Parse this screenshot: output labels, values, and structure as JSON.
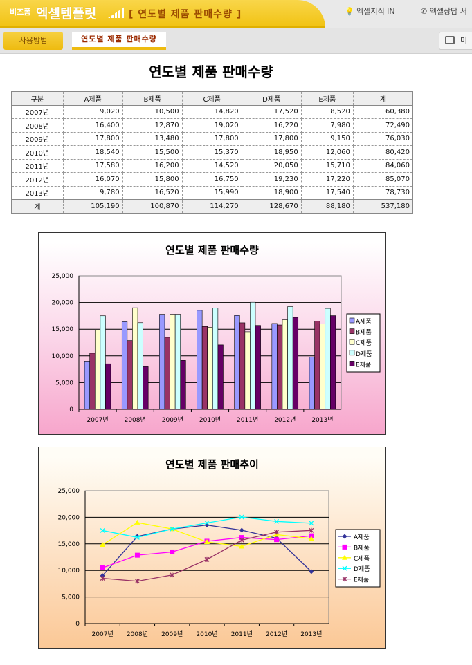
{
  "header": {
    "brand_small": "비즈폼",
    "brand": "엑셀템플릿",
    "title": "[ 연도별 제품 판매수량 ]",
    "tabs": [
      "엑셀지식 IN",
      "엑셀상담 서"
    ]
  },
  "subnav": {
    "usage": "사용방법",
    "current": "연도별 제품 판매수량",
    "right": "미"
  },
  "page_title": "연도별 제품 판매수량",
  "table": {
    "headers": [
      "구분",
      "A제품",
      "B제품",
      "C제품",
      "D제품",
      "E제품",
      "계"
    ],
    "rows": [
      [
        "2007년",
        "9,020",
        "10,500",
        "14,820",
        "17,520",
        "8,520",
        "60,380"
      ],
      [
        "2008년",
        "16,400",
        "12,870",
        "19,020",
        "16,220",
        "7,980",
        "72,490"
      ],
      [
        "2009년",
        "17,800",
        "13,480",
        "17,800",
        "17,800",
        "9,150",
        "76,030"
      ],
      [
        "2010년",
        "18,540",
        "15,500",
        "15,370",
        "18,950",
        "12,060",
        "80,420"
      ],
      [
        "2011년",
        "17,580",
        "16,200",
        "14,520",
        "20,050",
        "15,710",
        "84,060"
      ],
      [
        "2012년",
        "16,070",
        "15,800",
        "16,750",
        "19,230",
        "17,220",
        "85,070"
      ],
      [
        "2013년",
        "9,780",
        "16,520",
        "15,990",
        "18,900",
        "17,540",
        "78,730"
      ]
    ],
    "total": [
      "계",
      "105,190",
      "100,870",
      "114,270",
      "128,670",
      "88,180",
      "537,180"
    ]
  },
  "chart_data": [
    {
      "type": "bar",
      "title": "연도별 제품 판매수량",
      "categories": [
        "2007년",
        "2008년",
        "2009년",
        "2010년",
        "2011년",
        "2012년",
        "2013년"
      ],
      "ylim": [
        0,
        25000
      ],
      "yticks": [
        "25,000",
        "20,000",
        "15,000",
        "10,000",
        "5,000",
        "0"
      ],
      "legend": "right",
      "series": [
        {
          "name": "A제품",
          "color": "#9999ff",
          "values": [
            9020,
            16400,
            17800,
            18540,
            17580,
            16070,
            9780
          ]
        },
        {
          "name": "B제품",
          "color": "#993366",
          "values": [
            10500,
            12870,
            13480,
            15500,
            16200,
            15800,
            16520
          ]
        },
        {
          "name": "C제품",
          "color": "#ffffcc",
          "values": [
            14820,
            19020,
            17800,
            15370,
            14520,
            16750,
            15990
          ]
        },
        {
          "name": "D제품",
          "color": "#ccffff",
          "values": [
            17520,
            16220,
            17800,
            18950,
            20050,
            19230,
            18900
          ]
        },
        {
          "name": "E제품",
          "color": "#660066",
          "values": [
            8520,
            7980,
            9150,
            12060,
            15710,
            17220,
            17540
          ]
        }
      ]
    },
    {
      "type": "line",
      "title": "연도별 제품 판매추이",
      "categories": [
        "2007년",
        "2008년",
        "2009년",
        "2010년",
        "2011년",
        "2012년",
        "2013년"
      ],
      "ylim": [
        0,
        25000
      ],
      "yticks": [
        "25,000",
        "20,000",
        "15,000",
        "10,000",
        "5,000",
        "0"
      ],
      "legend": "right",
      "series": [
        {
          "name": "A제품",
          "color": "#333399",
          "values": [
            9020,
            16400,
            17800,
            18540,
            17580,
            16070,
            9780
          ]
        },
        {
          "name": "B제품",
          "color": "#ff00ff",
          "values": [
            10500,
            12870,
            13480,
            15500,
            16200,
            15800,
            16520
          ]
        },
        {
          "name": "C제품",
          "color": "#ffff00",
          "values": [
            14820,
            19020,
            17800,
            15370,
            14520,
            16750,
            15990
          ]
        },
        {
          "name": "D제품",
          "color": "#00ffff",
          "values": [
            17520,
            16220,
            17800,
            18950,
            20050,
            19230,
            18900
          ]
        },
        {
          "name": "E제품",
          "color": "#993366",
          "values": [
            8520,
            7980,
            9150,
            12060,
            15710,
            17220,
            17540
          ]
        }
      ]
    }
  ]
}
